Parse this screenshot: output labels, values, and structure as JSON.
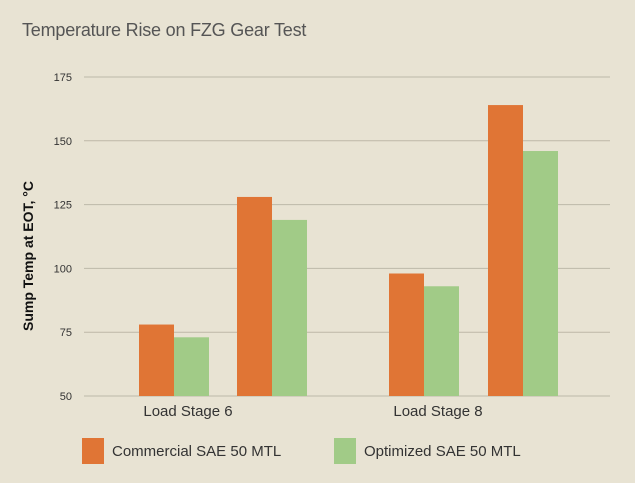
{
  "chart_data": {
    "type": "bar",
    "title": "Temperature Rise on FZG Gear Test",
    "xlabel": "",
    "ylabel": "Sump Temp at EOT, °C",
    "ylim": [
      50,
      175
    ],
    "yticks": [
      50,
      75,
      100,
      125,
      150,
      175
    ],
    "grid": true,
    "legend_position": "bottom",
    "groups": [
      {
        "label": "Load Stage 6",
        "sublabels": [
          "",
          ""
        ],
        "series": [
          {
            "name": "Commercial SAE 50 MTL",
            "values": [
              78,
              128
            ]
          },
          {
            "name": "Optimized SAE 50 MTL",
            "values": [
              73,
              119
            ]
          }
        ]
      },
      {
        "label": "Load Stage 8",
        "sublabels": [
          "",
          ""
        ],
        "series": [
          {
            "name": "Commercial SAE 50 MTL",
            "values": [
              98,
              164
            ]
          },
          {
            "name": "Optimized SAE 50 MTL",
            "values": [
              93,
              146
            ]
          }
        ]
      }
    ],
    "series": [
      {
        "name": "Commercial SAE 50 MTL",
        "color": "#e07535"
      },
      {
        "name": "Optimized SAE 50 MTL",
        "color": "#a1cb87"
      }
    ]
  }
}
